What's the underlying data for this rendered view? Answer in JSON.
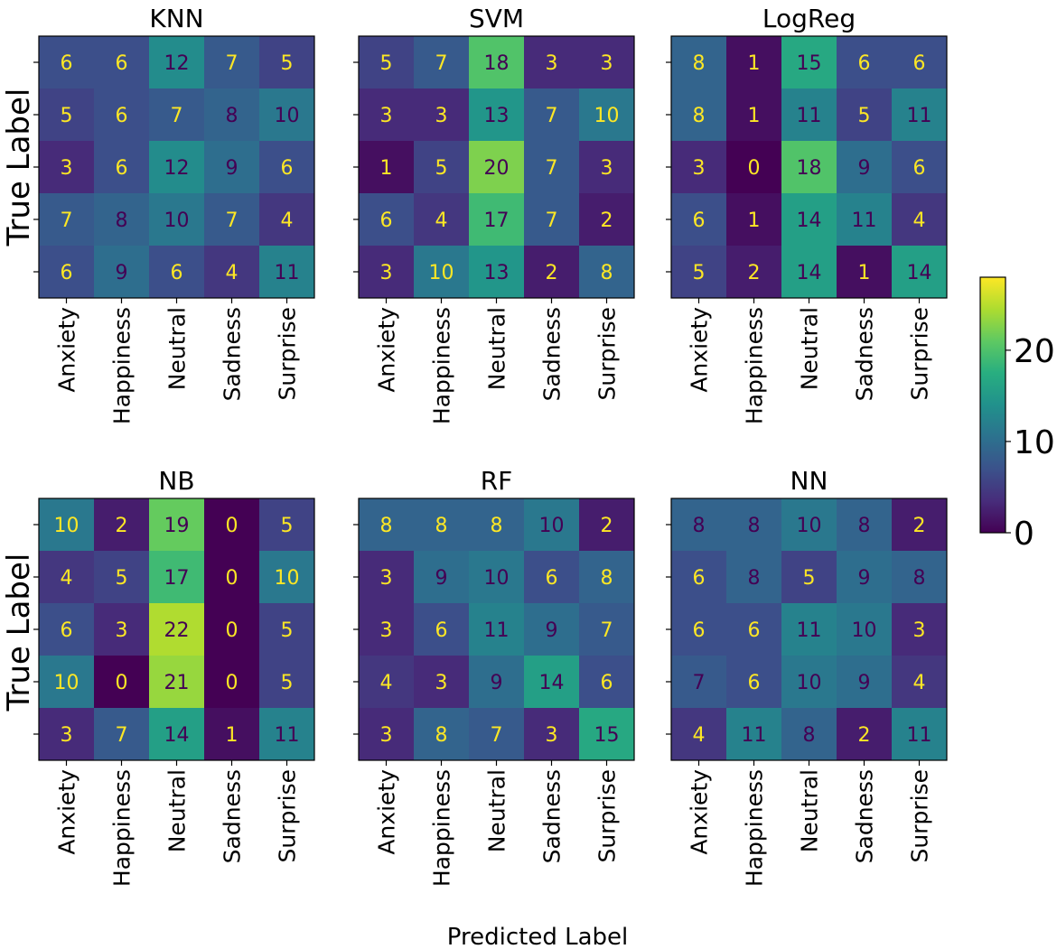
{
  "chart_data": {
    "type": "heatmap",
    "xlabel": "Predicted Label",
    "ylabel": "True Label",
    "class_labels": [
      "Anxiety",
      "Happiness",
      "Neutral",
      "Sadness",
      "Surprise"
    ],
    "colormap": "viridis",
    "colorbar": {
      "range": [
        0,
        28
      ],
      "ticks": [
        "0",
        "10",
        "20"
      ]
    },
    "text_colors": {
      "low": "#fde725",
      "high": "#440154"
    },
    "panels": [
      {
        "title": "KNN",
        "matrix": [
          [
            6,
            6,
            12,
            7,
            5
          ],
          [
            5,
            6,
            7,
            8,
            10
          ],
          [
            3,
            6,
            12,
            9,
            6
          ],
          [
            7,
            8,
            10,
            7,
            4
          ],
          [
            6,
            9,
            6,
            4,
            11
          ]
        ]
      },
      {
        "title": "SVM",
        "matrix": [
          [
            5,
            7,
            18,
            3,
            3
          ],
          [
            3,
            3,
            13,
            7,
            10
          ],
          [
            1,
            5,
            20,
            7,
            3
          ],
          [
            6,
            4,
            17,
            7,
            2
          ],
          [
            3,
            10,
            13,
            2,
            8
          ]
        ]
      },
      {
        "title": "LogReg",
        "matrix": [
          [
            8,
            1,
            15,
            6,
            6
          ],
          [
            8,
            1,
            11,
            5,
            11
          ],
          [
            3,
            0,
            18,
            9,
            6
          ],
          [
            6,
            1,
            14,
            11,
            4
          ],
          [
            5,
            2,
            14,
            1,
            14
          ]
        ]
      },
      {
        "title": "NB",
        "matrix": [
          [
            10,
            2,
            19,
            0,
            5
          ],
          [
            4,
            5,
            17,
            0,
            10
          ],
          [
            6,
            3,
            22,
            0,
            5
          ],
          [
            10,
            0,
            21,
            0,
            5
          ],
          [
            3,
            7,
            14,
            1,
            11
          ]
        ]
      },
      {
        "title": "RF",
        "matrix": [
          [
            8,
            8,
            8,
            10,
            2
          ],
          [
            3,
            9,
            10,
            6,
            8
          ],
          [
            3,
            6,
            11,
            9,
            7
          ],
          [
            4,
            3,
            9,
            14,
            6
          ],
          [
            3,
            8,
            7,
            3,
            15
          ]
        ]
      },
      {
        "title": "NN",
        "matrix": [
          [
            8,
            8,
            10,
            8,
            2
          ],
          [
            6,
            8,
            5,
            9,
            8
          ],
          [
            6,
            6,
            11,
            10,
            3
          ],
          [
            7,
            6,
            10,
            9,
            4
          ],
          [
            4,
            11,
            8,
            2,
            11
          ]
        ]
      }
    ]
  }
}
